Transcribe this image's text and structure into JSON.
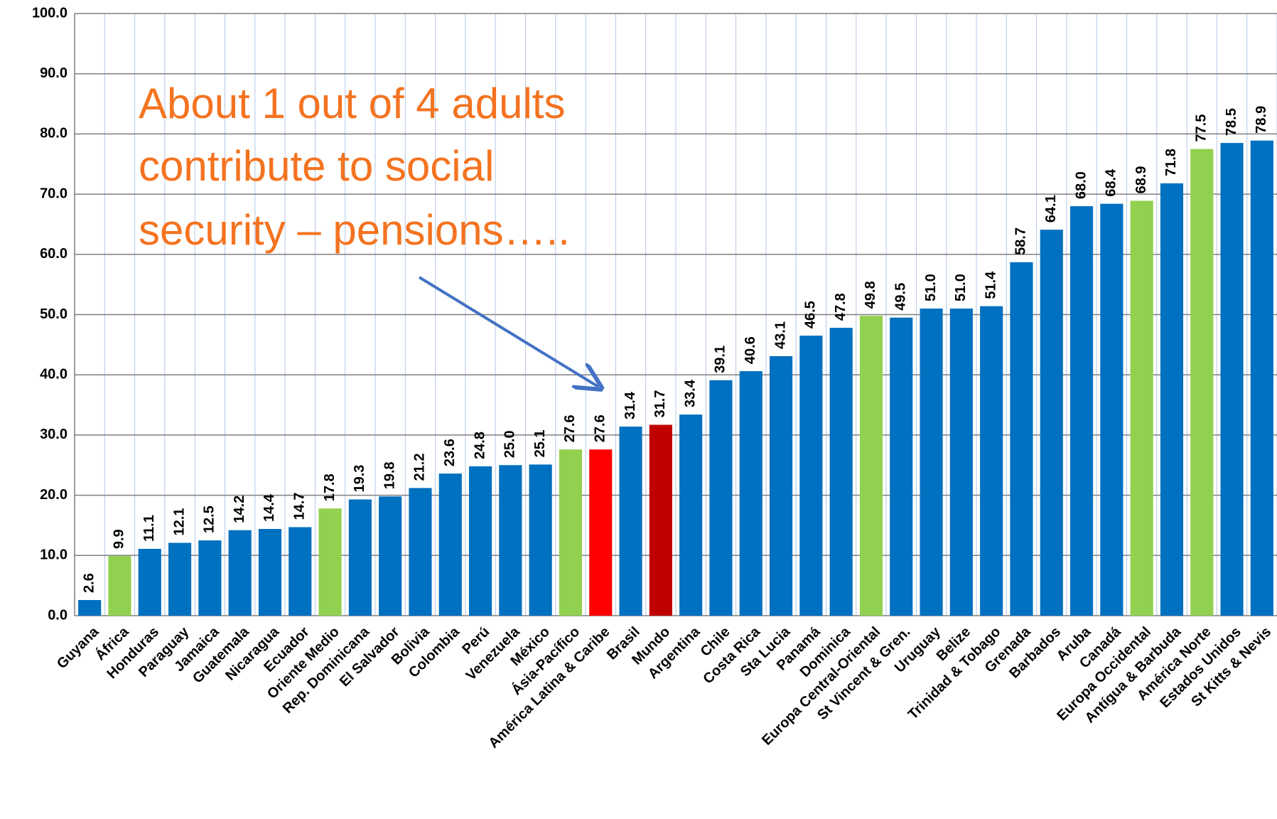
{
  "chart_data": {
    "type": "bar",
    "annotation": [
      "About 1 out of 4 adults",
      "contribute to social",
      "security – pensions….."
    ],
    "categories": [
      "Guyana",
      "África",
      "Honduras",
      "Paraguay",
      "Jamaica",
      "Guatemala",
      "Nicaragua",
      "Ecuador",
      "Oriente Medio",
      "Rep. Dominicana",
      "El Salvador",
      "Bolivia",
      "Colombia",
      "Perú",
      "Venezuela",
      "México",
      "Ásia-Pacífico",
      "América Latina & Caribe",
      "Brasil",
      "Mundo",
      "Argentina",
      "Chile",
      "Costa Rica",
      "Sta Lucia",
      "Panamá",
      "Dominica",
      "Europa Central-Oriental",
      "St Vincent & Gren.",
      "Uruguay",
      "Belize",
      "Trinidad & Tobago",
      "Grenada",
      "Barbados",
      "Aruba",
      "Canadá",
      "Europa Occidental",
      "Antígua & Barbuda",
      "América Norte",
      "Estados Unidos",
      "St Kitts & Nevis"
    ],
    "values": [
      2.6,
      9.9,
      11.1,
      12.1,
      12.5,
      14.2,
      14.4,
      14.7,
      17.8,
      19.3,
      19.8,
      21.2,
      23.6,
      24.8,
      25.0,
      25.1,
      27.6,
      27.6,
      31.4,
      31.7,
      33.4,
      39.1,
      40.6,
      43.1,
      46.5,
      47.8,
      49.8,
      49.5,
      51.0,
      51.0,
      51.4,
      58.7,
      64.1,
      68.0,
      68.4,
      68.9,
      71.8,
      77.5,
      78.5,
      78.9
    ],
    "value_labels": [
      "2.6",
      "9.9",
      "11.1",
      "12.1",
      "12.5",
      "14.2",
      "14.4",
      "14.7",
      "17.8",
      "19.3",
      "19.8",
      "21.2",
      "23.6",
      "24.8",
      "25.0",
      "25.1",
      "27.6",
      "27.6",
      "31.4",
      "31.7",
      "33.4",
      "39.1",
      "40.6",
      "43.1",
      "46.5",
      "47.8",
      "49.8",
      "49.5",
      "51.0",
      "51.0",
      "51.4",
      "58.7",
      "64.1",
      "68.0",
      "68.4",
      "68.9",
      "71.8",
      "77.5",
      "78.5",
      "78.9"
    ],
    "colors": [
      "#0070c0",
      "#92d050",
      "#0070c0",
      "#0070c0",
      "#0070c0",
      "#0070c0",
      "#0070c0",
      "#0070c0",
      "#92d050",
      "#0070c0",
      "#0070c0",
      "#0070c0",
      "#0070c0",
      "#0070c0",
      "#0070c0",
      "#0070c0",
      "#92d050",
      "#ff0000",
      "#0070c0",
      "#c00000",
      "#0070c0",
      "#0070c0",
      "#0070c0",
      "#0070c0",
      "#0070c0",
      "#0070c0",
      "#92d050",
      "#0070c0",
      "#0070c0",
      "#0070c0",
      "#0070c0",
      "#0070c0",
      "#0070c0",
      "#0070c0",
      "#0070c0",
      "#92d050",
      "#0070c0",
      "#92d050",
      "#0070c0",
      "#0070c0"
    ],
    "ylim": [
      0,
      100
    ],
    "yticks": [
      {
        "value": 0,
        "label": "0.0"
      },
      {
        "value": 10,
        "label": "10.0"
      },
      {
        "value": 20,
        "label": "20.0"
      },
      {
        "value": 30,
        "label": "30.0"
      },
      {
        "value": 40,
        "label": "40.0"
      },
      {
        "value": 50,
        "label": "50.0"
      },
      {
        "value": 60,
        "label": "60.0"
      },
      {
        "value": 70,
        "label": "70.0"
      },
      {
        "value": 80,
        "label": "80.0"
      },
      {
        "value": 90,
        "label": "90.0"
      },
      {
        "value": 100,
        "label": "100.0"
      }
    ],
    "grid": true
  }
}
